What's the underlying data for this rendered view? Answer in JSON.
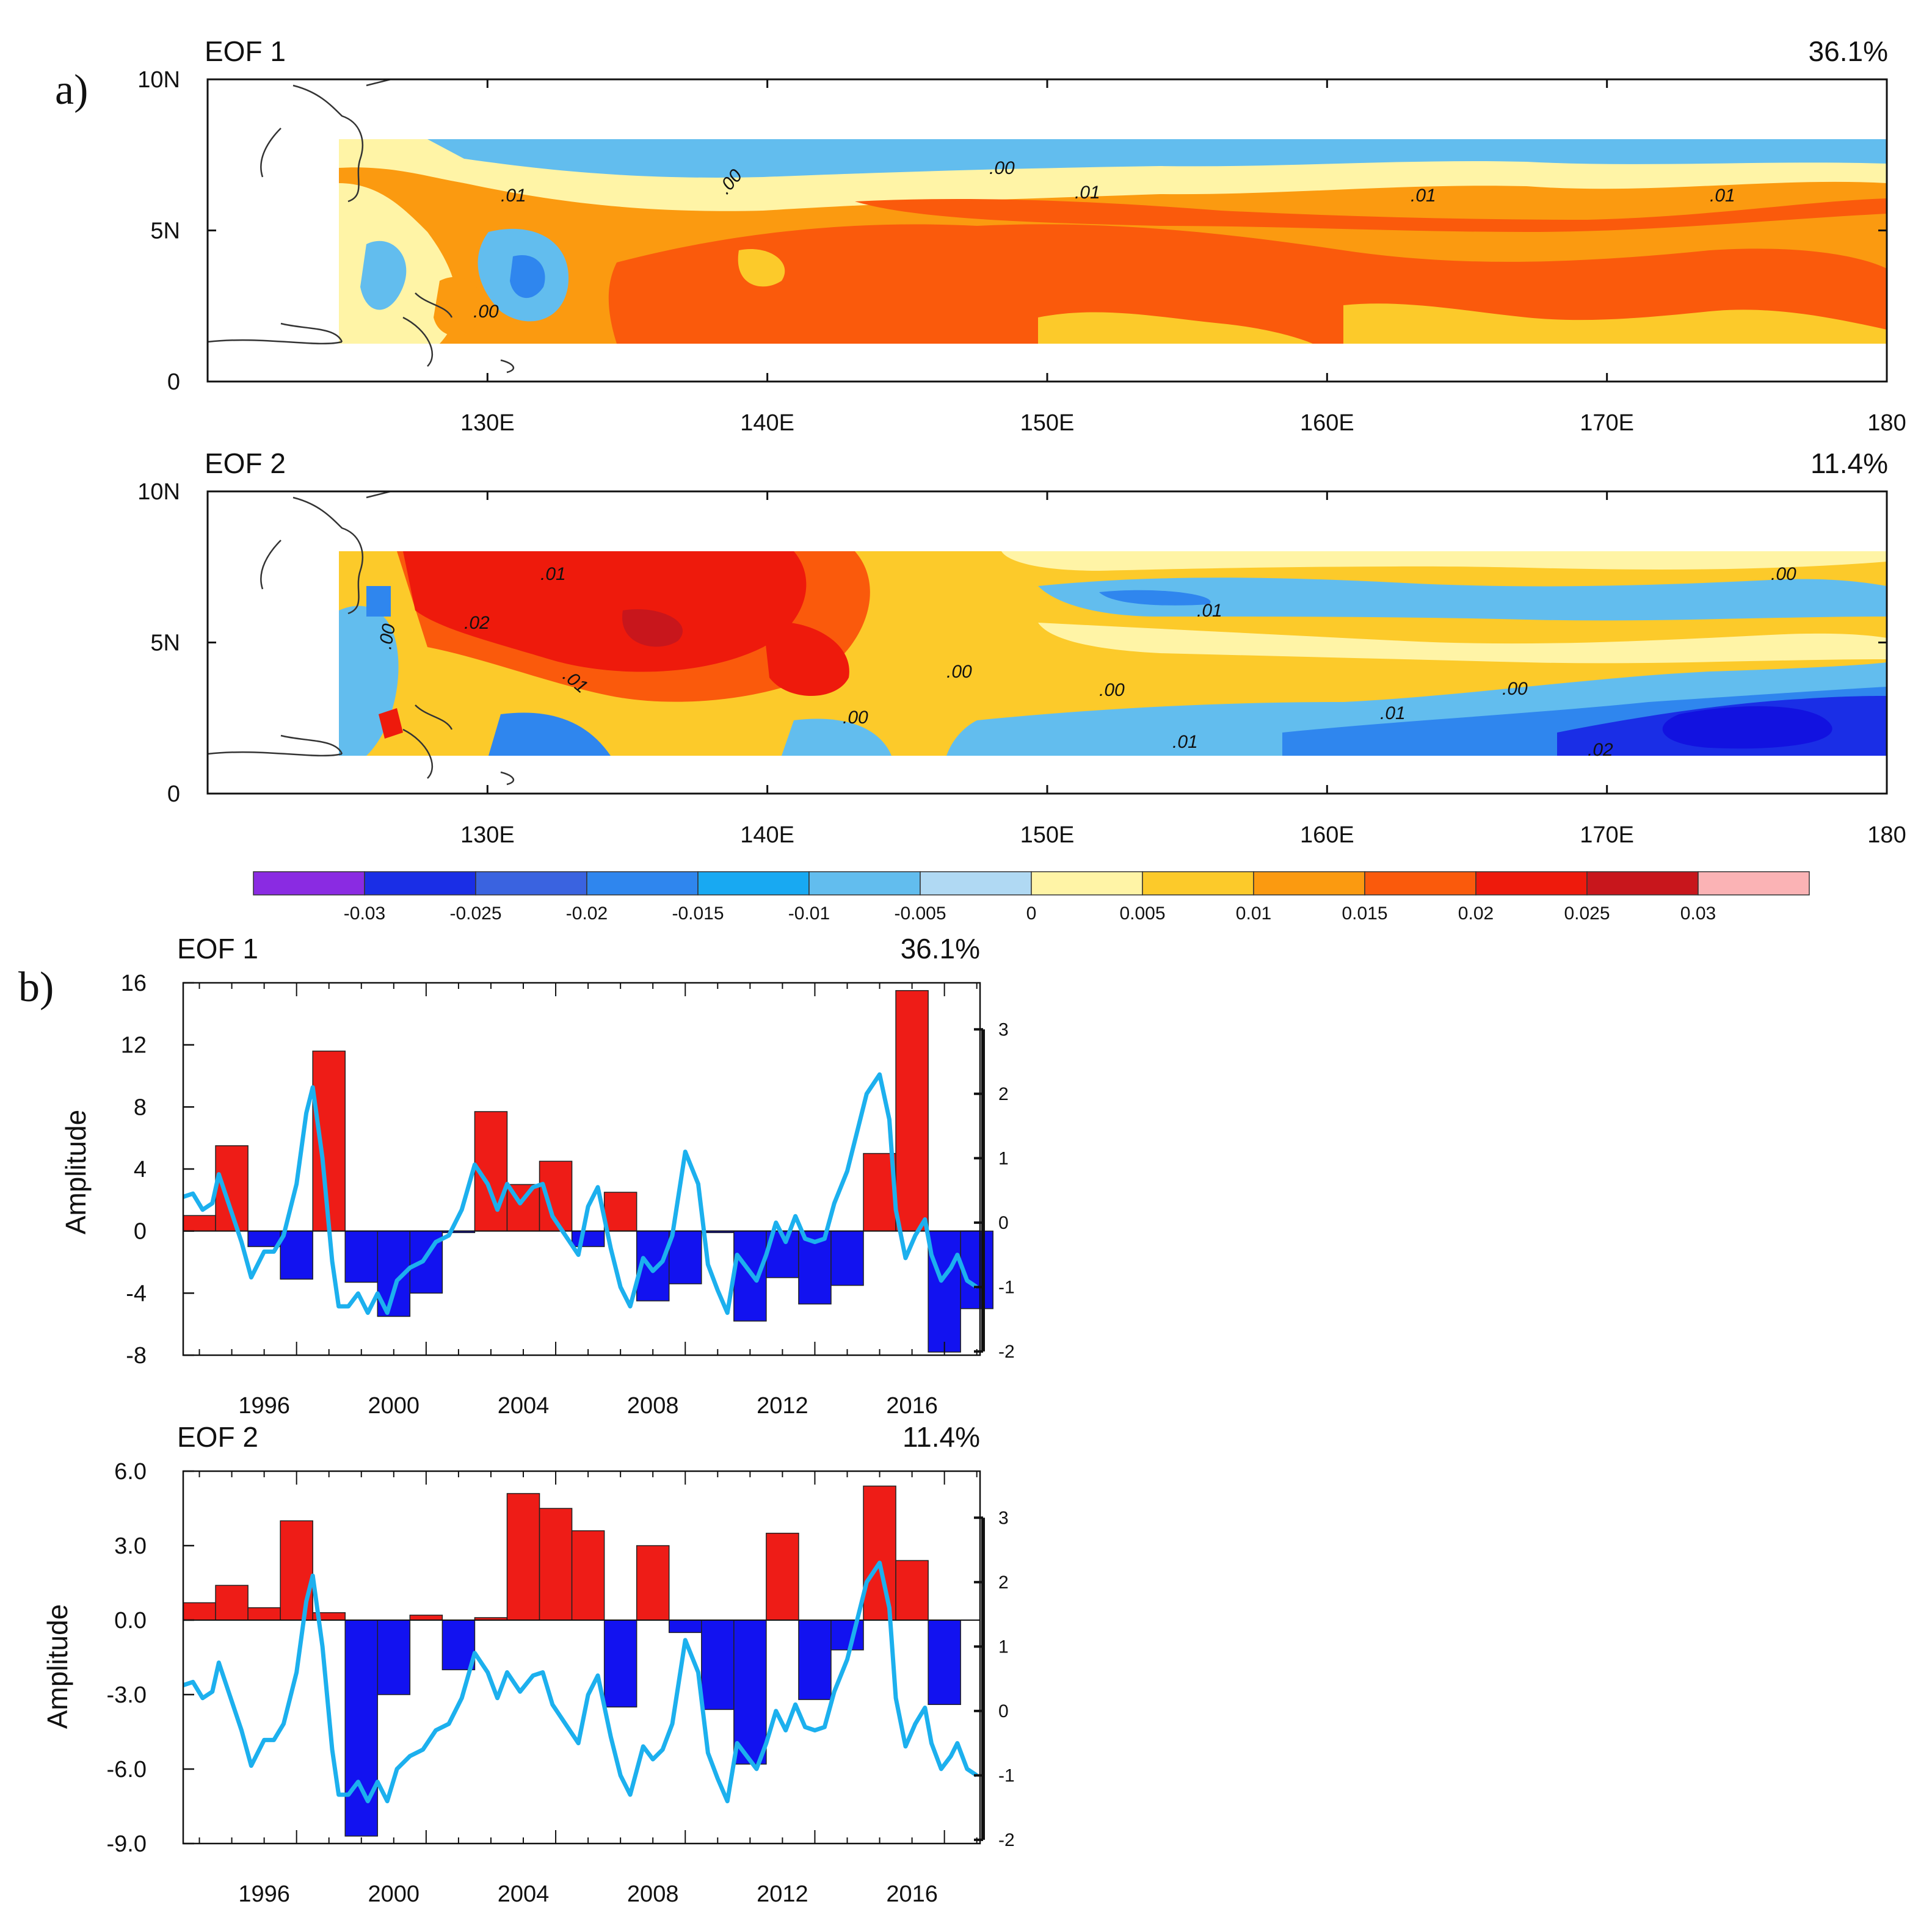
{
  "panel_labels": {
    "a": "a)",
    "b": "b)"
  },
  "chart_data": [
    {
      "type": "heatmap",
      "title": "EOF 1",
      "variance": "36.1%",
      "x_ticks": [
        "130E",
        "140E",
        "150E",
        "160E",
        "170E",
        "180"
      ],
      "y_ticks": [
        "10N",
        "5N",
        "0"
      ],
      "xlim_deg": [
        120,
        180
      ],
      "ylim_deg": [
        0,
        10
      ],
      "contour_labels": [
        ".01",
        ".00",
        ".00",
        ".01",
        ".01",
        ".01",
        ".00"
      ]
    },
    {
      "type": "heatmap",
      "title": "EOF 2",
      "variance": "11.4%",
      "x_ticks": [
        "130E",
        "140E",
        "150E",
        "160E",
        "170E",
        "180"
      ],
      "y_ticks": [
        "10N",
        "5N",
        "0"
      ],
      "xlim_deg": [
        120,
        180
      ],
      "ylim_deg": [
        0,
        10
      ],
      "contour_labels": [
        ".01",
        ".02",
        ".00",
        ".01",
        ".00",
        ".01",
        ".00",
        ".00",
        ".01",
        ".01",
        ".00",
        ".02",
        ".00"
      ]
    },
    {
      "type": "bar",
      "title": "EOF 1",
      "variance": "36.1%",
      "ylabel": "Amplitude",
      "years": [
        1993,
        1994,
        1995,
        1996,
        1997,
        1998,
        1999,
        2000,
        2001,
        2002,
        2003,
        2004,
        2005,
        2006,
        2007,
        2008,
        2009,
        2010,
        2011,
        2012,
        2013,
        2014,
        2015,
        2016,
        2017
      ],
      "values": [
        1.0,
        5.5,
        -1.0,
        -3.1,
        11.6,
        -3.3,
        -5.5,
        -4.0,
        -0.1,
        7.7,
        3.0,
        4.5,
        -1.0,
        2.5,
        -4.5,
        -3.4,
        -0.1,
        -5.8,
        -3.0,
        -4.7,
        -3.5,
        5.0,
        15.5,
        -7.8,
        -5.0
      ],
      "ylim": [
        -8,
        16
      ],
      "y_ticks": [
        "16",
        "12",
        "8",
        "4",
        "0",
        "-4",
        "-8"
      ],
      "x_ticks": [
        "1996",
        "2000",
        "2004",
        "2008",
        "2012",
        "2016"
      ],
      "right_axis": {
        "range": [
          -2,
          3
        ],
        "ticks": [
          "3",
          "2",
          "1",
          "0",
          "-1",
          "-2"
        ]
      },
      "series": [
        {
          "name": "index",
          "x": [
            1993.0,
            1993.3,
            1993.6,
            1993.9,
            1994.1,
            1994.4,
            1994.8,
            1995.1,
            1995.5,
            1995.8,
            1996.1,
            1996.5,
            1996.8,
            1997.0,
            1997.3,
            1997.6,
            1997.8,
            1998.1,
            1998.4,
            1998.7,
            1999.0,
            1999.3,
            1999.6,
            2000.0,
            2000.4,
            2000.8,
            2001.2,
            2001.6,
            2002.0,
            2002.4,
            2002.7,
            2003.0,
            2003.4,
            2003.8,
            2004.1,
            2004.4,
            2004.8,
            2005.2,
            2005.5,
            2005.8,
            2006.2,
            2006.5,
            2006.8,
            2007.2,
            2007.5,
            2007.8,
            2008.1,
            2008.5,
            2008.9,
            2009.2,
            2009.5,
            2009.8,
            2010.1,
            2010.4,
            2010.7,
            2011.0,
            2011.3,
            2011.6,
            2011.9,
            2012.2,
            2012.5,
            2012.8,
            2013.1,
            2013.5,
            2013.8,
            2014.1,
            2014.5,
            2014.8,
            2015.0,
            2015.3,
            2015.6,
            2015.9,
            2016.1,
            2016.4,
            2016.7,
            2016.9,
            2017.2,
            2017.5
          ],
          "y": [
            0.4,
            0.45,
            0.2,
            0.3,
            0.75,
            0.3,
            -0.3,
            -0.85,
            -0.45,
            -0.45,
            -0.2,
            0.6,
            1.7,
            2.1,
            1.0,
            -0.6,
            -1.3,
            -1.3,
            -1.1,
            -1.4,
            -1.1,
            -1.4,
            -0.9,
            -0.7,
            -0.6,
            -0.3,
            -0.2,
            0.2,
            0.9,
            0.6,
            0.2,
            0.6,
            0.3,
            0.55,
            0.6,
            0.1,
            -0.2,
            -0.5,
            0.25,
            0.55,
            -0.4,
            -1.0,
            -1.3,
            -0.55,
            -0.75,
            -0.6,
            -0.2,
            1.1,
            0.6,
            -0.65,
            -1.05,
            -1.4,
            -0.5,
            -0.7,
            -0.9,
            -0.5,
            0.0,
            -0.3,
            0.1,
            -0.25,
            -0.3,
            -0.25,
            0.3,
            0.8,
            1.4,
            2.0,
            2.3,
            1.6,
            0.2,
            -0.55,
            -0.2,
            0.05,
            -0.5,
            -0.9,
            -0.7,
            -0.5,
            -0.9,
            -1.0
          ]
        }
      ]
    },
    {
      "type": "bar",
      "title": "EOF 2",
      "variance": "11.4%",
      "ylabel": "Amplitude",
      "years": [
        1993,
        1994,
        1995,
        1996,
        1997,
        1998,
        1999,
        2000,
        2001,
        2002,
        2003,
        2004,
        2005,
        2006,
        2007,
        2008,
        2009,
        2010,
        2011,
        2012,
        2013,
        2014,
        2015,
        2016,
        2017
      ],
      "values": [
        0.7,
        1.4,
        0.5,
        4.0,
        0.3,
        -8.7,
        -3.0,
        0.2,
        -2.0,
        0.1,
        5.1,
        4.5,
        3.6,
        -3.5,
        3.0,
        -0.5,
        -3.6,
        -5.8,
        3.5,
        -3.2,
        -1.2,
        5.4,
        2.4,
        -3.4,
        0.0
      ],
      "ylim": [
        -9,
        6
      ],
      "y_ticks": [
        "6.0",
        "3.0",
        "0.0",
        "-3.0",
        "-6.0",
        "-9.0"
      ],
      "x_ticks": [
        "1996",
        "2000",
        "2004",
        "2008",
        "2012",
        "2016"
      ],
      "right_axis": {
        "range": [
          -2,
          3
        ],
        "ticks": [
          "3",
          "2",
          "1",
          "0",
          "-1",
          "-2"
        ]
      },
      "series": [
        {
          "name": "index",
          "x": [
            1993.0,
            1993.3,
            1993.6,
            1993.9,
            1994.1,
            1994.4,
            1994.8,
            1995.1,
            1995.5,
            1995.8,
            1996.1,
            1996.5,
            1996.8,
            1997.0,
            1997.3,
            1997.6,
            1997.8,
            1998.1,
            1998.4,
            1998.7,
            1999.0,
            1999.3,
            1999.6,
            2000.0,
            2000.4,
            2000.8,
            2001.2,
            2001.6,
            2002.0,
            2002.4,
            2002.7,
            2003.0,
            2003.4,
            2003.8,
            2004.1,
            2004.4,
            2004.8,
            2005.2,
            2005.5,
            2005.8,
            2006.2,
            2006.5,
            2006.8,
            2007.2,
            2007.5,
            2007.8,
            2008.1,
            2008.5,
            2008.9,
            2009.2,
            2009.5,
            2009.8,
            2010.1,
            2010.4,
            2010.7,
            2011.0,
            2011.3,
            2011.6,
            2011.9,
            2012.2,
            2012.5,
            2012.8,
            2013.1,
            2013.5,
            2013.8,
            2014.1,
            2014.5,
            2014.8,
            2015.0,
            2015.3,
            2015.6,
            2015.9,
            2016.1,
            2016.4,
            2016.7,
            2016.9,
            2017.2,
            2017.5
          ],
          "y": [
            0.4,
            0.45,
            0.2,
            0.3,
            0.75,
            0.3,
            -0.3,
            -0.85,
            -0.45,
            -0.45,
            -0.2,
            0.6,
            1.7,
            2.1,
            1.0,
            -0.6,
            -1.3,
            -1.3,
            -1.1,
            -1.4,
            -1.1,
            -1.4,
            -0.9,
            -0.7,
            -0.6,
            -0.3,
            -0.2,
            0.2,
            0.9,
            0.6,
            0.2,
            0.6,
            0.3,
            0.55,
            0.6,
            0.1,
            -0.2,
            -0.5,
            0.25,
            0.55,
            -0.4,
            -1.0,
            -1.3,
            -0.55,
            -0.75,
            -0.6,
            -0.2,
            1.1,
            0.6,
            -0.65,
            -1.05,
            -1.4,
            -0.5,
            -0.7,
            -0.9,
            -0.5,
            0.0,
            -0.3,
            0.1,
            -0.25,
            -0.3,
            -0.25,
            0.3,
            0.8,
            1.4,
            2.0,
            2.3,
            1.6,
            0.2,
            -0.55,
            -0.2,
            0.05,
            -0.5,
            -0.9,
            -0.7,
            -0.5,
            -0.9,
            -1.0
          ]
        }
      ]
    }
  ],
  "colorbar": {
    "labels": [
      "-0.03",
      "-0.025",
      "-0.02",
      "-0.015",
      "-0.01",
      "-0.005",
      "0",
      "0.005",
      "0.01",
      "0.015",
      "0.02",
      "0.025",
      "0.03"
    ],
    "colors": [
      "#8a2be2",
      "#1a2ee6",
      "#3a63e0",
      "#2f86ee",
      "#18a9f2",
      "#62bdee",
      "#b0d9f3",
      "#fff4a6",
      "#fcca2a",
      "#fb9a10",
      "#fa5a0c",
      "#ee1a0c",
      "#c8161c",
      "#fbb3b5"
    ]
  },
  "colors": {
    "positive": "#ee1c17",
    "negative": "#1212f0",
    "index_line": "#1cb0ee"
  }
}
